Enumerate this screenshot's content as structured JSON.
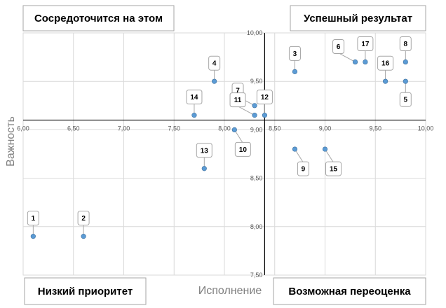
{
  "chart_data": {
    "type": "scatter",
    "title": "",
    "xlabel": "Исполнение",
    "ylabel": "Важность",
    "xlim": [
      6.0,
      10.0
    ],
    "ylim": [
      7.5,
      10.0
    ],
    "x_ticks": [
      "6,00",
      "6,50",
      "7,00",
      "7,50",
      "8,00",
      "8,50",
      "9,00",
      "9,50",
      "10,00"
    ],
    "y_ticks": [
      "7,50",
      "8,00",
      "8,50",
      "9,00",
      "9,50",
      "10,00"
    ],
    "x_tick_values": [
      6.0,
      6.5,
      7.0,
      7.5,
      8.0,
      8.5,
      9.0,
      9.5,
      10.0
    ],
    "y_tick_values": [
      7.5,
      8.0,
      8.5,
      9.0,
      9.5,
      10.0
    ],
    "x_cross": 8.4,
    "y_cross": 9.1,
    "grid": true,
    "point_color": "#5b9bd5",
    "points": [
      {
        "label": "1",
        "x": 6.1,
        "y": 7.9,
        "label_pos": "above"
      },
      {
        "label": "2",
        "x": 6.6,
        "y": 7.9,
        "label_pos": "above"
      },
      {
        "label": "3",
        "x": 8.7,
        "y": 9.6,
        "label_pos": "above"
      },
      {
        "label": "4",
        "x": 7.9,
        "y": 9.5,
        "label_pos": "above"
      },
      {
        "label": "5",
        "x": 9.8,
        "y": 9.5,
        "label_pos": "below"
      },
      {
        "label": "6",
        "x": 9.3,
        "y": 9.7,
        "label_pos": "upper-left"
      },
      {
        "label": "7",
        "x": 8.3,
        "y": 9.25,
        "label_pos": "upper-left"
      },
      {
        "label": "8",
        "x": 9.8,
        "y": 9.7,
        "label_pos": "above"
      },
      {
        "label": "9",
        "x": 8.7,
        "y": 8.8,
        "label_pos": "below-right"
      },
      {
        "label": "10",
        "x": 8.1,
        "y": 9.0,
        "label_pos": "below-right"
      },
      {
        "label": "11",
        "x": 8.3,
        "y": 9.15,
        "label_pos": "upper-left"
      },
      {
        "label": "12",
        "x": 8.4,
        "y": 9.15,
        "label_pos": "above"
      },
      {
        "label": "13",
        "x": 7.8,
        "y": 8.6,
        "label_pos": "above"
      },
      {
        "label": "14",
        "x": 7.7,
        "y": 9.15,
        "label_pos": "above"
      },
      {
        "label": "15",
        "x": 9.0,
        "y": 8.8,
        "label_pos": "below-right"
      },
      {
        "label": "16",
        "x": 9.6,
        "y": 9.5,
        "label_pos": "above"
      },
      {
        "label": "17",
        "x": 9.4,
        "y": 9.7,
        "label_pos": "above"
      }
    ]
  },
  "quadrants": {
    "top_left": "Сосредоточится на этом",
    "top_right": "Успешный результат",
    "bottom_left": "Низкий приоритет",
    "bottom_right": "Возможная переоценка"
  }
}
